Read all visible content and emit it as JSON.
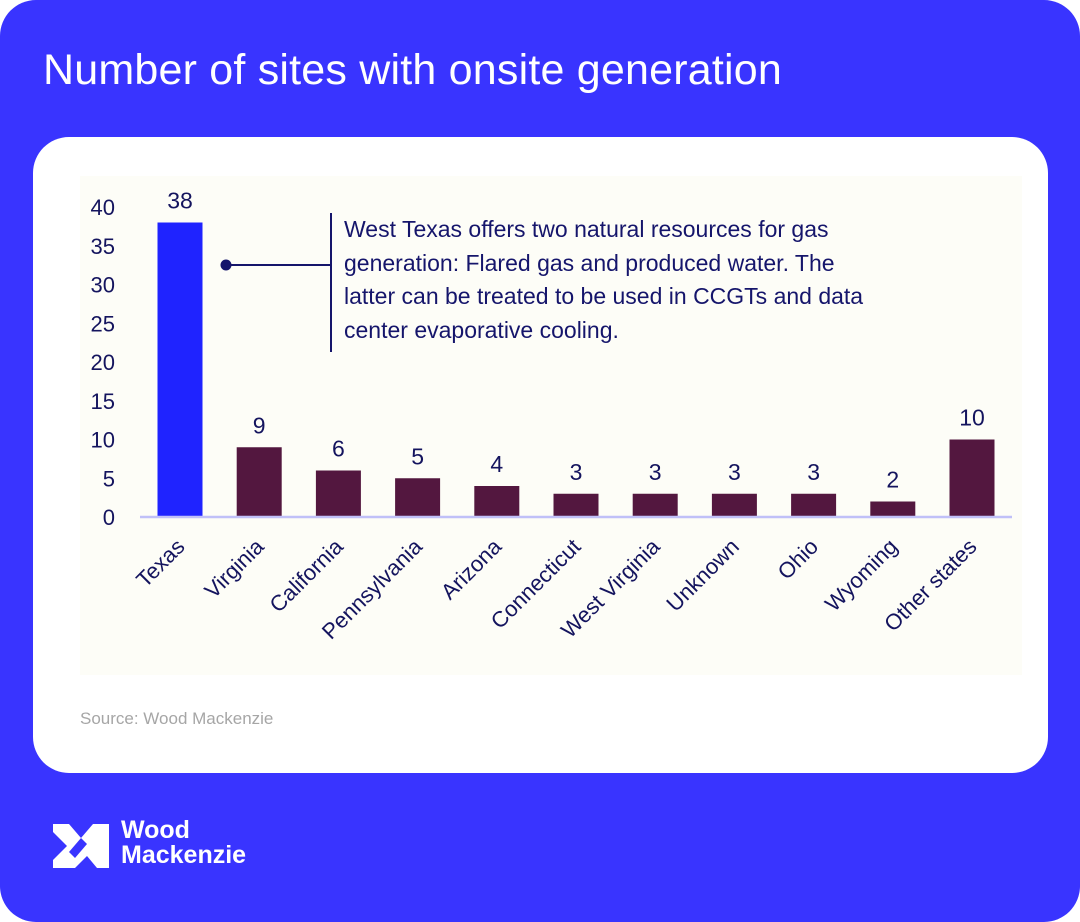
{
  "page": {
    "background_color": "#3934ff",
    "card_color": "#ffffff",
    "plot_background_color": "#fdfdf7"
  },
  "header": {
    "title": "Number of sites with onsite generation"
  },
  "annotation": {
    "text": "West Texas offers two natural resources for gas generation: Flared gas and produced water. The latter can be treated to be used in CCGTs and data center evaporative cooling.",
    "lines": [
      "West Texas offers two natural resources for gas",
      "generation: Flared gas and produced water. The",
      "latter can be treated to be used in CCGTs and data",
      "center evaporative cooling."
    ],
    "points_to": "Texas",
    "color": "#15156b"
  },
  "source": "Source: Wood Mackenzie",
  "brand": {
    "logo_icon": "wood-mackenzie-logo-icon",
    "name_line1": "Wood",
    "name_line2": "Mackenzie"
  },
  "chart_data": {
    "type": "bar",
    "title": "Number of sites with onsite generation",
    "xlabel": "",
    "ylabel": "",
    "categories": [
      "Texas",
      "Virginia",
      "California",
      "Pennsylvania",
      "Arizona",
      "Connecticut",
      "West Virginia",
      "Unknown",
      "Ohio",
      "Wyoming",
      "Other states"
    ],
    "values": [
      38,
      9,
      6,
      5,
      4,
      3,
      3,
      3,
      3,
      2,
      10
    ],
    "data_labels": [
      "38",
      "9",
      "6",
      "5",
      "4",
      "3",
      "3",
      "3",
      "3",
      "2",
      "10"
    ],
    "highlight": [
      "Texas"
    ],
    "colors": {
      "highlight": "#1f23ff",
      "default": "#53173f",
      "axis": "#c0c0f8",
      "text": "#14145e"
    },
    "ylim": [
      0,
      40
    ],
    "yticks": [
      0,
      5,
      10,
      15,
      20,
      25,
      30,
      35,
      40
    ],
    "grid": false,
    "legend": "none",
    "x_label_rotation_deg": -45
  }
}
